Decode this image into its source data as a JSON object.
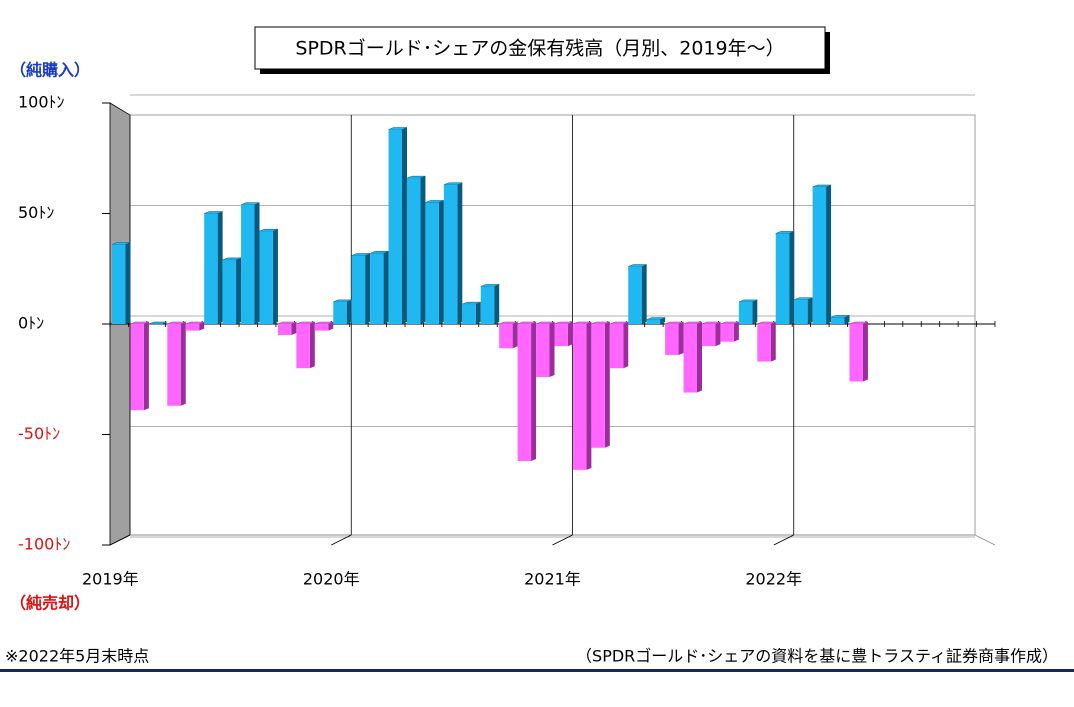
{
  "chart_data": {
    "type": "bar",
    "title": "SPDRゴールド･シェアの金保有残高（月別、2019年～）",
    "annotations": {
      "top": "（純購入）",
      "bottom": "（純売却）",
      "note": "※2022年5月末時点",
      "source": "（SPDRゴールド･シェアの資料を基に豊トラスティ証券商事作成）"
    },
    "categories": [
      "2019年",
      null,
      null,
      null,
      null,
      null,
      null,
      null,
      null,
      null,
      null,
      null,
      "2020年",
      null,
      null,
      null,
      null,
      null,
      null,
      null,
      null,
      null,
      null,
      null,
      "2021年",
      null,
      null,
      null,
      null,
      null,
      null,
      null,
      null,
      null,
      null,
      null,
      "2022年",
      null,
      null,
      null,
      null
    ],
    "values": [
      36,
      -39,
      0,
      -37,
      -3,
      50,
      29,
      54,
      42,
      -5,
      -20,
      -3,
      10,
      31,
      32,
      88,
      66,
      55,
      63,
      9,
      17,
      -11,
      -62,
      -24,
      -10,
      -66,
      -56,
      -20,
      26,
      2,
      -14,
      -31,
      -10,
      -8,
      10,
      -17,
      41,
      11,
      62,
      3,
      -26
    ],
    "positive_color": "#20b8f0",
    "negative_color": "#ff66ff",
    "xlim": [
      0,
      48
    ],
    "ylim": [
      -100,
      100
    ],
    "yticks": [
      {
        "value": -100,
        "label": "-100ﾄﾝ"
      },
      {
        "value": -50,
        "label": "-50ﾄﾝ"
      },
      {
        "value": 0,
        "label": "0ﾄﾝ"
      },
      {
        "value": 50,
        "label": "50ﾄﾝ"
      },
      {
        "value": 100,
        "label": "100ﾄﾝ"
      }
    ],
    "grid": true
  }
}
